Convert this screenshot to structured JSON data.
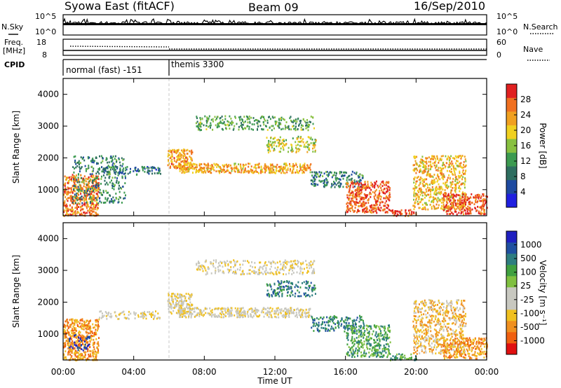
{
  "header": {
    "station": "Syowa East (fitACF)",
    "beam": "Beam 09",
    "date": "16/Sep/2010"
  },
  "strip_labels": {
    "nsky": "N.Sky",
    "nsearch": "N.Search",
    "freq_line1": "Freq.",
    "freq_line2": "[MHz]",
    "nave": "Nave",
    "cpid": "CPID",
    "noise_top_left": "10^5",
    "noise_bot_left": "10^0",
    "noise_top_right": "10^5",
    "noise_bot_right": "10^0",
    "freq_top": "18",
    "freq_bot": "8",
    "nave_top": "60",
    "nave_bot": "0"
  },
  "cpid_segments": [
    {
      "label": "normal (fast) -151",
      "start_hour": 0,
      "end_hour": 6
    },
    {
      "label": "themis 3300",
      "start_hour": 6,
      "end_hour": 24
    }
  ],
  "colors": {
    "power": [
      "#2020e0",
      "#1e4aa0",
      "#2e6e60",
      "#3c9a50",
      "#88c040",
      "#f0d020",
      "#f0a020",
      "#f07020",
      "#e02020"
    ],
    "velocity": [
      "#e01010",
      "#f06010",
      "#f09020",
      "#f0c020",
      "#c8c8c0",
      "#c8c8c0",
      "#80c040",
      "#40a040",
      "#2e7e80",
      "#2050a0",
      "#2020c0"
    ],
    "frame": "#000000",
    "background": "#ffffff",
    "ground_scatter": "#a8a8a8"
  },
  "chart_data": [
    {
      "type": "heatmap",
      "name": "power",
      "xlabel": "",
      "ylabel": "Slant Range [km]",
      "xlim": [
        0,
        24
      ],
      "ylim": [
        180,
        4500
      ],
      "yticks": [
        "1000",
        "2000",
        "3000",
        "4000"
      ],
      "xticks": [],
      "colorbar": {
        "label": "Power [dB]",
        "range": [
          0,
          30
        ],
        "ticks": [
          "4",
          "8",
          "12",
          "16",
          "20",
          "24",
          "28"
        ]
      },
      "scatter_regions": [
        {
          "t0": 0.0,
          "t1": 2.0,
          "r0": 200,
          "r1": 1500,
          "value": 24,
          "density": 0.85
        },
        {
          "t0": 0.5,
          "t1": 3.5,
          "r0": 600,
          "r1": 2100,
          "value": 10,
          "density": 0.35
        },
        {
          "t0": 2.0,
          "t1": 5.5,
          "r0": 1500,
          "r1": 1750,
          "value": 8,
          "density": 0.55
        },
        {
          "t0": 5.9,
          "t1": 7.3,
          "r0": 1650,
          "r1": 2300,
          "value": 22,
          "density": 0.9
        },
        {
          "t0": 6.5,
          "t1": 14.0,
          "r0": 1550,
          "r1": 1850,
          "value": 21,
          "density": 0.85
        },
        {
          "t0": 7.5,
          "t1": 14.2,
          "r0": 2900,
          "r1": 3350,
          "value": 12,
          "density": 0.45
        },
        {
          "t0": 11.5,
          "t1": 14.3,
          "r0": 2200,
          "r1": 2700,
          "value": 17,
          "density": 0.5
        },
        {
          "t0": 14.0,
          "t1": 17.0,
          "r0": 1100,
          "r1": 1600,
          "value": 9,
          "density": 0.55
        },
        {
          "t0": 16.0,
          "t1": 18.5,
          "r0": 300,
          "r1": 1300,
          "value": 26,
          "density": 0.75
        },
        {
          "t0": 18.5,
          "t1": 20.0,
          "r0": 200,
          "r1": 400,
          "value": 27,
          "density": 0.8
        },
        {
          "t0": 19.8,
          "t1": 22.8,
          "r0": 400,
          "r1": 2100,
          "value": 20,
          "density": 0.6
        },
        {
          "t0": 21.5,
          "t1": 24.0,
          "r0": 250,
          "r1": 900,
          "value": 26,
          "density": 0.75
        }
      ]
    },
    {
      "type": "heatmap",
      "name": "velocity",
      "xlabel": "Time UT",
      "ylabel": "Slant Range [km]",
      "xlim": [
        0,
        24
      ],
      "ylim": [
        180,
        4500
      ],
      "yticks": [
        "1000",
        "2000",
        "3000",
        "4000"
      ],
      "xticks": [
        "00:00",
        "04:00",
        "08:00",
        "12:00",
        "16:00",
        "20:00",
        "00:00"
      ],
      "colorbar": {
        "label": "Velocity [m s⁻¹]",
        "ticks": [
          "1000",
          "500",
          "100",
          "25",
          "-25",
          "-100",
          "-500",
          "-1000"
        ]
      },
      "scatter_regions": [
        {
          "t0": 0.0,
          "t1": 2.0,
          "r0": 200,
          "r1": 1500,
          "value": 2,
          "density": 0.85
        },
        {
          "t0": 0.3,
          "t1": 1.5,
          "r0": 500,
          "r1": 1000,
          "value": 10,
          "density": 0.35
        },
        {
          "t0": 2.0,
          "t1": 5.5,
          "r0": 1500,
          "r1": 1750,
          "value": 4,
          "density": 0.5
        },
        {
          "t0": 5.9,
          "t1": 7.3,
          "r0": 1650,
          "r1": 2300,
          "value": 4,
          "density": 0.9
        },
        {
          "t0": 6.5,
          "t1": 14.0,
          "r0": 1550,
          "r1": 1850,
          "value": 4,
          "density": 0.85
        },
        {
          "t0": 7.5,
          "t1": 14.2,
          "r0": 2900,
          "r1": 3350,
          "value": 4,
          "density": 0.45
        },
        {
          "t0": 11.5,
          "t1": 14.3,
          "r0": 2200,
          "r1": 2700,
          "value": 8,
          "density": 0.5
        },
        {
          "t0": 14.0,
          "t1": 17.0,
          "r0": 1100,
          "r1": 1600,
          "value": 8,
          "density": 0.55
        },
        {
          "t0": 16.0,
          "t1": 18.5,
          "r0": 300,
          "r1": 1300,
          "value": 7,
          "density": 0.65
        },
        {
          "t0": 18.5,
          "t1": 20.0,
          "r0": 200,
          "r1": 400,
          "value": 7,
          "density": 0.7
        },
        {
          "t0": 19.8,
          "t1": 22.8,
          "r0": 400,
          "r1": 2100,
          "value": 3,
          "density": 0.6
        },
        {
          "t0": 21.5,
          "t1": 24.0,
          "r0": 250,
          "r1": 900,
          "value": 2,
          "density": 0.75
        }
      ]
    }
  ]
}
